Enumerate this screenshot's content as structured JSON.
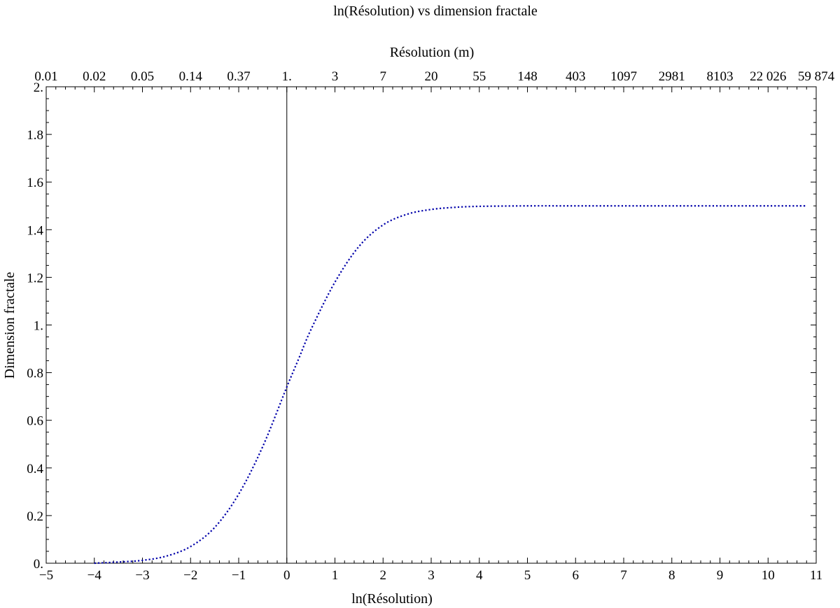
{
  "chart_data": {
    "type": "line",
    "title": "ln(Résolution) vs dimension fractale",
    "xlabel": "ln(Résolution)",
    "ylabel": "Dimension fractale",
    "x2label": "Résolution (m)",
    "xlim": [
      -5,
      11
    ],
    "ylim": [
      0,
      2
    ],
    "x_ticks": [
      -5,
      -4,
      -3,
      -2,
      -1,
      0,
      1,
      2,
      3,
      4,
      5,
      6,
      7,
      8,
      9,
      10,
      11
    ],
    "x_tick_labels": [
      "−5",
      "−4",
      "−3",
      "−2",
      "−1",
      "0",
      "1",
      "2",
      "3",
      "4",
      "5",
      "6",
      "7",
      "8",
      "9",
      "10",
      "11"
    ],
    "y_ticks": [
      0,
      0.2,
      0.4,
      0.6,
      0.8,
      1,
      1.2,
      1.4,
      1.6,
      1.8,
      2
    ],
    "y_tick_labels": [
      "0.",
      "0.2",
      "0.4",
      "0.6",
      "0.8",
      "1.",
      "1.2",
      "1.4",
      "1.6",
      "1.8",
      "2."
    ],
    "x2_ticks": [
      -5,
      -4,
      -3,
      -2,
      -1,
      0,
      1,
      2,
      3,
      4,
      5,
      6,
      7,
      8,
      9,
      10,
      11
    ],
    "x2_tick_labels": [
      "0.01",
      "0.02",
      "0.05",
      "0.14",
      "0.37",
      "1.",
      "3",
      "7",
      "20",
      "55",
      "148",
      "403",
      "1097",
      "2981",
      "8103",
      "22 026",
      "59 874"
    ],
    "vertical_line_x": 0,
    "grid": false,
    "series": [
      {
        "line_style": "dotted",
        "color": "#0000aa",
        "x": [
          -4.0,
          -3.5,
          -3.0,
          -2.5,
          -2.0,
          -1.5,
          -1.0,
          -0.5,
          0.0,
          0.25,
          0.5,
          1.0,
          1.5,
          2.0,
          2.5,
          3.0,
          3.5,
          4.0,
          5.0,
          6.0,
          7.0,
          8.0,
          9.0,
          10.0,
          10.8
        ],
        "y": [
          0.0,
          0.005,
          0.012,
          0.03,
          0.07,
          0.15,
          0.29,
          0.49,
          0.74,
          0.86,
          0.98,
          1.18,
          1.33,
          1.42,
          1.465,
          1.485,
          1.494,
          1.498,
          1.5,
          1.5,
          1.5,
          1.5,
          1.5,
          1.5,
          1.5
        ]
      }
    ]
  }
}
